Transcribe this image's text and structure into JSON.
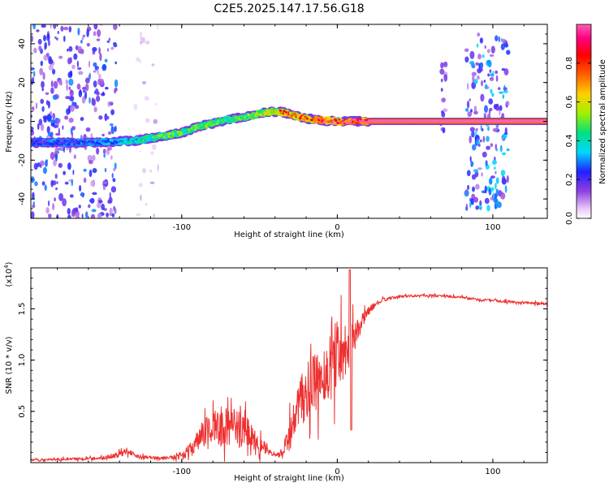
{
  "title": "C2E5.2025.147.17.56.G18",
  "chart_data": [
    {
      "type": "heatmap",
      "xlabel": "Height of straight line (km)",
      "ylabel": "Frequency (Hz)",
      "xlim": [
        -197,
        135
      ],
      "ylim": [
        -50,
        50
      ],
      "xticks": [
        -100,
        0,
        100
      ],
      "yticks": [
        -40,
        -20,
        0,
        20,
        40
      ],
      "colorbar": {
        "label": "Normalized spectral amplitude",
        "range": [
          0,
          1
        ],
        "ticks": [
          0.0,
          0.2,
          0.4,
          0.6,
          0.8
        ],
        "colors": [
          "#ffffff",
          "#e8c8f8",
          "#9040e0",
          "#2020ff",
          "#00d8ff",
          "#00e080",
          "#a0f000",
          "#ffd000",
          "#ff6000",
          "#ff0000",
          "#ff0080",
          "#ff60b0"
        ]
      },
      "ridge": {
        "x": [
          -197,
          -160,
          -145,
          -130,
          -115,
          -100,
          -90,
          -80,
          -70,
          -60,
          -50,
          -42,
          -38,
          -34,
          -30,
          -25,
          -20,
          -15,
          -10,
          -5,
          0,
          5,
          10,
          20,
          135
        ],
        "freq": [
          -11,
          -11,
          -10.5,
          -10,
          -8,
          -6,
          -3,
          -1,
          1,
          2,
          4,
          5,
          5,
          4.5,
          3.5,
          2.5,
          1.5,
          1,
          0.5,
          0.2,
          0,
          0,
          0,
          0,
          0
        ],
        "amplitude": [
          0.2,
          0.25,
          0.3,
          0.4,
          0.45,
          0.5,
          0.5,
          0.5,
          0.45,
          0.5,
          0.55,
          0.6,
          0.7,
          0.75,
          0.8,
          0.8,
          0.85,
          0.85,
          0.9,
          0.9,
          0.9,
          0.95,
          1.0,
          1.0,
          1.0
        ]
      },
      "scatter_regions": [
        {
          "x": [
            -197,
            -142
          ],
          "freq": [
            -50,
            50
          ],
          "density": 0.8,
          "amplitude": 0.25
        },
        {
          "x": [
            -130,
            -115
          ],
          "freq": [
            -50,
            50
          ],
          "density": 0.25,
          "amplitude": 0.08
        },
        {
          "x": [
            66,
            70
          ],
          "freq": [
            -8,
            30
          ],
          "density": 0.5,
          "amplitude": 0.2
        },
        {
          "x": [
            83,
            110
          ],
          "freq": [
            -45,
            45
          ],
          "density": 0.9,
          "amplitude": 0.3
        }
      ]
    },
    {
      "type": "line",
      "xlabel": "Height of straight line (km)",
      "ylabel": "SNR (10 * v/v)",
      "scale_label": "(x10",
      "scale_exponent": "4",
      "xlim": [
        -197,
        135
      ],
      "ylim": [
        0,
        19000
      ],
      "xticks": [
        -100,
        0,
        100
      ],
      "yticks": [
        5000,
        10000,
        15000
      ],
      "ytick_labels": [
        "0.5",
        "1.0",
        "1.5"
      ],
      "color": "#ee3030",
      "envelope": {
        "x": [
          -197,
          -160,
          -150,
          -140,
          -135,
          -130,
          -120,
          -110,
          -100,
          -95,
          -90,
          -85,
          -80,
          -75,
          -70,
          -65,
          -60,
          -55,
          -50,
          -45,
          -40,
          -35,
          -30,
          -25,
          -20,
          -15,
          -10,
          -5,
          0,
          5,
          10,
          15,
          20,
          25,
          30,
          40,
          50,
          60,
          70,
          80,
          90,
          100,
          110,
          120,
          135
        ],
        "y": [
          250,
          400,
          450,
          800,
          1200,
          700,
          500,
          450,
          700,
          1200,
          2000,
          3000,
          3600,
          3200,
          3600,
          3300,
          3200,
          2600,
          2100,
          1100,
          700,
          900,
          3000,
          5500,
          6800,
          7600,
          8200,
          9200,
          10600,
          11200,
          12000,
          13500,
          14800,
          15500,
          15900,
          16200,
          16300,
          16300,
          16250,
          16100,
          15900,
          15800,
          15700,
          15600,
          15500
        ],
        "noise": [
          150,
          200,
          250,
          400,
          500,
          300,
          200,
          200,
          500,
          900,
          1500,
          2200,
          2600,
          2400,
          2800,
          2600,
          2500,
          2000,
          1500,
          500,
          200,
          800,
          2500,
          3500,
          4000,
          4200,
          4500,
          4800,
          5000,
          4000,
          2500,
          1200,
          600,
          350,
          250,
          200,
          180,
          180,
          180,
          180,
          180,
          180,
          180,
          180,
          180
        ]
      }
    }
  ]
}
